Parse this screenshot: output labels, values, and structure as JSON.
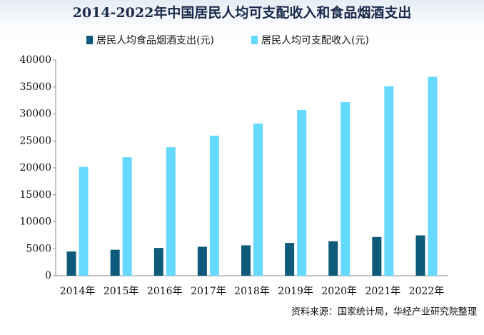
{
  "chart_data": {
    "type": "bar",
    "title": "2014-2022年中国居民人均可支配收入和食品烟酒支出",
    "categories": [
      "2014年",
      "2015年",
      "2016年",
      "2017年",
      "2018年",
      "2019年",
      "2020年",
      "2021年",
      "2022年"
    ],
    "series": [
      {
        "name": "居民人均食品烟酒支出(元)",
        "color": "#0e5a7a",
        "values": [
          4494,
          4814,
          5151,
          5374,
          5631,
          6084,
          6397,
          7178,
          7481
        ]
      },
      {
        "name": "居民人均可支配收入(元)",
        "color": "#66d9ff",
        "values": [
          20167,
          21966,
          23821,
          25974,
          28228,
          30733,
          32189,
          35128,
          36883
        ]
      }
    ],
    "ylim": [
      0,
      40000
    ],
    "yticks": [
      0,
      5000,
      10000,
      15000,
      20000,
      25000,
      30000,
      35000,
      40000
    ],
    "source": "资料来源：国家统计局，华经产业研究院整理"
  }
}
